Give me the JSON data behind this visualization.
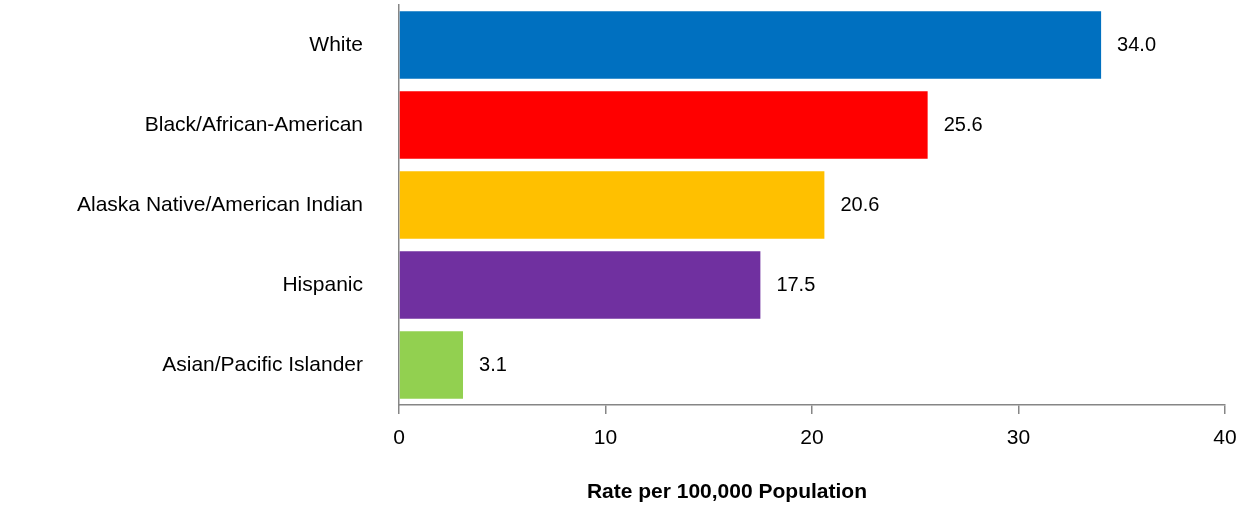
{
  "chart_data": {
    "type": "bar",
    "orientation": "horizontal",
    "xlabel": "Rate per 100,000 Population",
    "categories": [
      "White",
      "Black/African-American",
      "Alaska Native/American Indian",
      "Hispanic",
      "Asian/Pacific Islander"
    ],
    "values": [
      34.0,
      25.6,
      20.6,
      17.5,
      3.1
    ],
    "colors": [
      "#0070c0",
      "#ff0000",
      "#ffc000",
      "#7030a0",
      "#92d050"
    ],
    "value_labels": [
      "34.0",
      "25.6",
      "20.6",
      "17.5",
      "3.1"
    ],
    "xlim": [
      0,
      40
    ],
    "xticks": [
      0,
      10,
      20,
      30,
      40
    ]
  }
}
